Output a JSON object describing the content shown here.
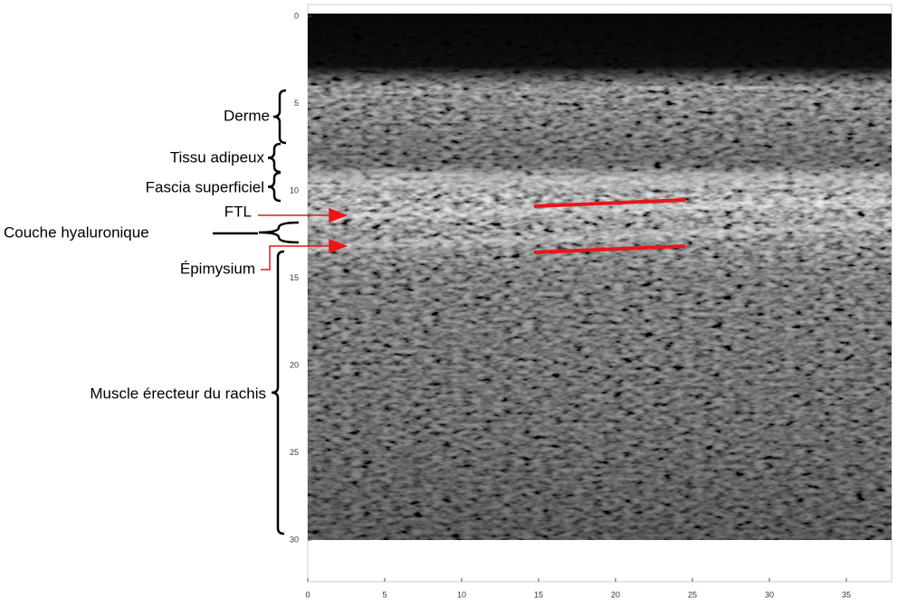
{
  "labels": {
    "derme": "Derme",
    "tissu_adipeux": "Tissu adipeux",
    "fascia": "Fascia superficiel",
    "ftl": "FTL",
    "couche": "Couche hyaluronique",
    "epimysium": "Épimysium",
    "muscle": "Muscle érecteur du rachis"
  },
  "axes": {
    "y_ticks": [
      0,
      5,
      10,
      15,
      20,
      25,
      30
    ],
    "x_ticks": [
      0,
      5,
      10,
      15,
      20,
      25,
      30,
      35
    ]
  }
}
